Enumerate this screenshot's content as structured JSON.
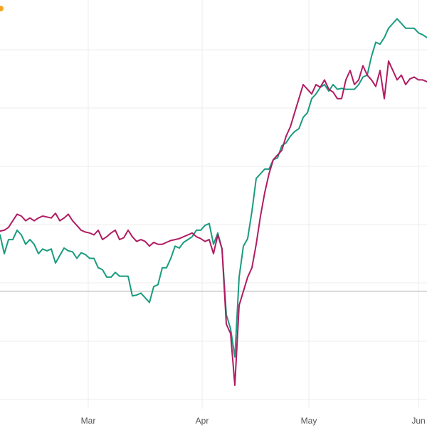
{
  "chart_data": {
    "type": "line",
    "x_axis": {
      "tick_labels": [
        "Mar",
        "Apr",
        "May",
        "Jun"
      ]
    },
    "y_axis": {
      "baseline_visible": true,
      "ylim": [
        -12.5,
        31
      ]
    },
    "grid": {
      "vertical": true,
      "horizontal": true
    },
    "legend": null,
    "series": [
      {
        "color": "#1a9b7f",
        "values": [
          6,
          4,
          5.5,
          5.5,
          6.5,
          6,
          5,
          5.5,
          5,
          4,
          4.5,
          4.3,
          4.5,
          3,
          3.8,
          4.6,
          4.3,
          4.2,
          3.5,
          4.1,
          3.9,
          3.5,
          3.5,
          2.5,
          2.3,
          1.5,
          1.5,
          2,
          1.6,
          1.6,
          1.6,
          -0.5,
          -0.4,
          -0.2,
          -0.7,
          -1.2,
          0.5,
          0.7,
          2.5,
          2.5,
          3.5,
          4.8,
          4.6,
          5.2,
          5.5,
          5.8,
          6.5,
          6.5,
          7,
          7.2,
          5,
          6.2,
          4.5,
          -2.5,
          -4,
          -7,
          1.5,
          4.8,
          5.6,
          8.5,
          12,
          12.5,
          13,
          13,
          14,
          14.2,
          15.5,
          15.8,
          16.5,
          17,
          17.3,
          18.5,
          19,
          20.5,
          21,
          21.7,
          22,
          21.3,
          22,
          21.5,
          21.6,
          21.5,
          21.5,
          21.5,
          22,
          22.8,
          23,
          25,
          26.5,
          26.3,
          27,
          28,
          28.5,
          29,
          28.5,
          28,
          28,
          28,
          27.5,
          27.3,
          27
        ]
      },
      {
        "color": "#b01c62",
        "values": [
          6.4,
          6.5,
          6.8,
          7.5,
          8.2,
          8,
          7.5,
          7.8,
          7.5,
          7.8,
          8,
          7.9,
          7.8,
          8.3,
          7.5,
          7.8,
          8.2,
          7.5,
          7,
          6.5,
          6.3,
          6.2,
          6,
          6.5,
          5.5,
          5.8,
          6.2,
          6.5,
          5.5,
          5.7,
          6.5,
          5.8,
          5.3,
          5.5,
          5.3,
          4.8,
          5.2,
          5,
          5,
          5.2,
          5.4,
          5.5,
          5.6,
          5.8,
          6,
          6.2,
          5.8,
          5.6,
          5.3,
          5.5,
          4,
          6,
          4.5,
          -3.5,
          -4.5,
          -10,
          -1.5,
          0,
          1.5,
          2.5,
          5,
          8,
          10.5,
          12.5,
          14,
          14.5,
          15,
          16.5,
          17.5,
          19,
          20.5,
          22,
          21.5,
          21,
          22,
          21.7,
          22.5,
          21.5,
          21.2,
          20.5,
          20.5,
          22.5,
          23.5,
          22,
          22.5,
          24,
          23,
          22.5,
          21.8,
          23.5,
          20.5,
          24.5,
          23.5,
          22.5,
          23,
          22,
          22.6,
          22.8,
          22.5,
          22.5,
          22.3
        ]
      }
    ]
  }
}
